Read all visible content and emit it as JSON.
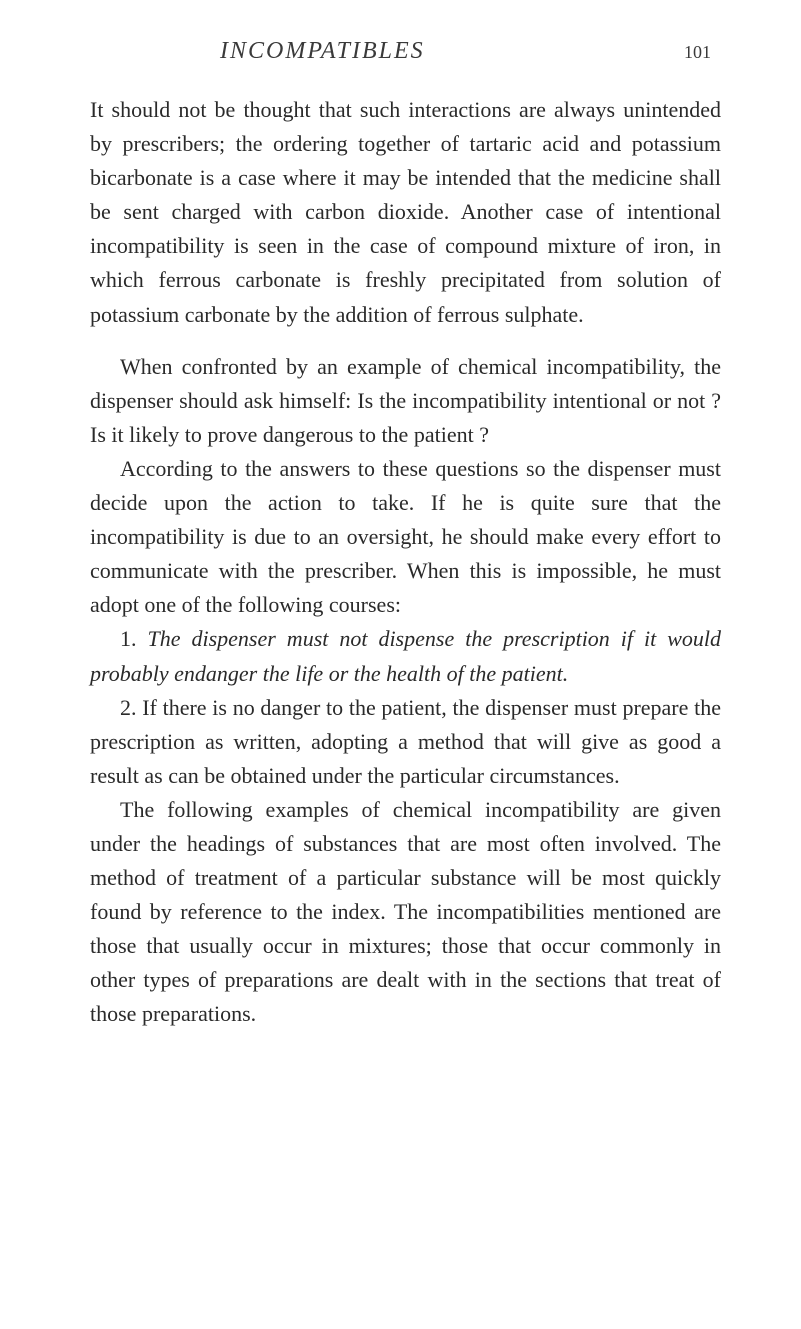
{
  "header": {
    "title": "INCOMPATIBLES",
    "page_number": "101"
  },
  "paragraphs": {
    "p1": "It should not be thought that such interactions are always unintended by prescribers; the ordering together of tartaric acid and potassium bicarbonate is a case where it may be intended that the medicine shall be sent charged with carbon dioxide. Another case of intentional incompatibility is seen in the case of compound mixture of iron, in which ferrous carbonate is freshly precipitated from solution of potassium carbonate by the addition of ferrous sulphate.",
    "p2": "When confronted by an example of chemical incompatibility, the dispenser should ask himself: Is the incompatibility intentional or not ? Is it likely to prove dangerous to the patient ?",
    "p3": "According to the answers to these questions so the dispenser must decide upon the action to take. If he is quite sure that the incompatibility is due to an oversight, he should make every effort to communicate with the prescriber. When this is impossible, he must adopt one of the following courses:",
    "p4_num": "1. ",
    "p4_italic": "The dispenser must not dispense the prescription if it would probably endanger the life or the health of the patient.",
    "p5": "2. If there is no danger to the patient, the dispenser must prepare the prescription as written, adopting a method that will give as good a result as can be obtained under the particular circumstances.",
    "p6": "The following examples of chemical incompatibility are given under the headings of substances that are most often involved. The method of treatment of a particular substance will be most quickly found by reference to the index. The incompatibilities mentioned are those that usually occur in mixtures; those that occur commonly in other types of preparations are dealt with in the sections that treat of those preparations."
  }
}
